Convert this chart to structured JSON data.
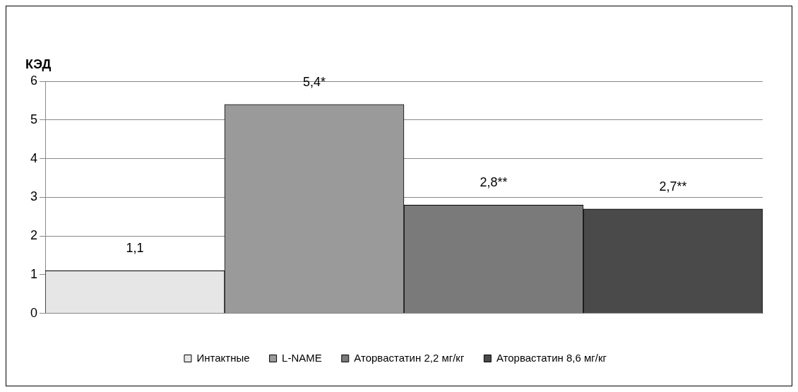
{
  "chart_data": {
    "type": "bar",
    "ylabel": "КЭД",
    "categories": [
      null,
      null,
      null,
      null
    ],
    "series": [
      {
        "name": "Интактные",
        "color": "#e6e6e6",
        "values": [
          1.1,
          null,
          null,
          null
        ],
        "value_labels": [
          "1,1",
          null,
          null,
          null
        ]
      },
      {
        "name": "L-NAME",
        "color": "#9a9a9a",
        "values": [
          null,
          5.4,
          null,
          null
        ],
        "value_labels": [
          null,
          "5,4*",
          null,
          null
        ]
      },
      {
        "name": "Аторвастатин 2,2 мг/кг",
        "color": "#7a7a7a",
        "values": [
          null,
          null,
          2.8,
          null
        ],
        "value_labels": [
          null,
          null,
          "2,8**",
          null
        ]
      },
      {
        "name": "Аторвастатин 8,6 мг/кг",
        "color": "#4a4a4a",
        "values": [
          null,
          null,
          null,
          2.7
        ],
        "value_labels": [
          null,
          null,
          null,
          "2,7**"
        ]
      }
    ],
    "ylim": [
      0,
      6
    ],
    "yticks": [
      0,
      1,
      2,
      3,
      4,
      5,
      6
    ],
    "grid": "y",
    "legend": "bottom"
  }
}
